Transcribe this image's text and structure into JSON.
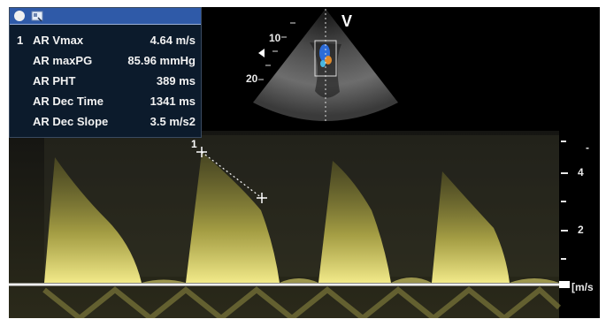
{
  "measurements": {
    "header_icons": [
      "record-icon",
      "screen-settings-icon"
    ],
    "rows": [
      {
        "index": "1",
        "label": "AR Vmax",
        "value": "4.64 m/s"
      },
      {
        "index": "",
        "label": "AR maxPG",
        "value": "85.96 mmHg"
      },
      {
        "index": "",
        "label": "AR PHT",
        "value": "389 ms"
      },
      {
        "index": "",
        "label": "AR Dec Time",
        "value": "1341 ms"
      },
      {
        "index": "",
        "label": "AR Dec Slope",
        "value": "3.5 m/s2"
      }
    ]
  },
  "echo_view": {
    "probe_marker": "V",
    "depth_labels": [
      "10",
      "20"
    ]
  },
  "doppler": {
    "scale_ticks": [
      "4",
      "2"
    ],
    "unit": "[m/s",
    "cursor_label": "1",
    "top_marker": "-",
    "spectrum_color": "#d8d060",
    "baseline_color": "#f0f0f0"
  }
}
